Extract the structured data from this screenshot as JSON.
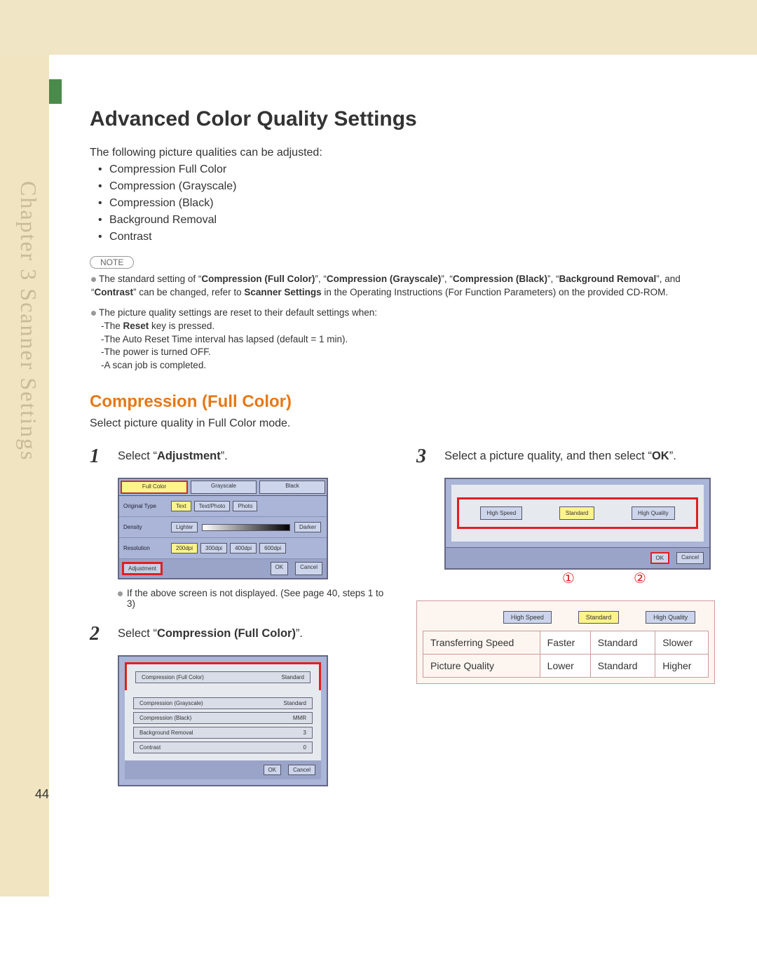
{
  "colors": {
    "beige": "#f0e5c5",
    "accent": "#4a8a4a",
    "orange": "#e67817",
    "red": "#e02020",
    "panel": "#aab5d8"
  },
  "sideTab": "Chapter 3   Scanner Settings",
  "h1": "Advanced Color Quality Settings",
  "intro": "The following picture qualities can be adjusted:",
  "bullets": [
    "Compression Full Color",
    "Compression (Grayscale)",
    "Compression (Black)",
    "Background Removal",
    "Contrast"
  ],
  "noteLabel": "NOTE",
  "note1_a": "The standard setting of “",
  "note1_b": "Compression (Full Color)",
  "note1_c": "”, “",
  "note1_d": "Compression (Grayscale)",
  "note1_e": "”, “",
  "note1_f": "Compression (Black)",
  "note1_g": "”, “",
  "note1_h": "Background Removal",
  "note1_i": "”, and “",
  "note1_j": "Contrast",
  "note1_k": "” can be changed, refer to ",
  "note1_l": "Scanner Settings",
  "note1_m": " in the Operating Instructions (For Function Parameters) on the provided CD-ROM.",
  "note2": "The picture quality settings are reset to their default settings when:",
  "note2subs": [
    "-The Reset key is pressed.",
    "-The Auto Reset Time interval has lapsed (default = 1 min).",
    "-The power is turned OFF.",
    "-A scan job is completed."
  ],
  "note2sub0_a": "-The ",
  "note2sub0_b": "Reset",
  "note2sub0_c": " key is pressed.",
  "h2": "Compression (Full Color)",
  "sel": "Select picture quality in Full Color mode.",
  "step1_a": "Select “",
  "step1_b": "Adjustment",
  "step1_c": "”.",
  "step1note": "If the above screen is not displayed. (See page 40, steps 1 to 3)",
  "step2_a": "Select “",
  "step2_b": "Compression (Full Color)",
  "step2_c": "”.",
  "step3_a": "Select a picture quality, and then select “",
  "step3_b": "OK",
  "step3_c": "”.",
  "num1": "1",
  "num2": "2",
  "num3": "3",
  "co1": "①",
  "co2": "②",
  "screen1": {
    "tabs": [
      "Full Color",
      "Grayscale",
      "Black"
    ],
    "rows": {
      "original": "Original Type",
      "origBtns": [
        "Text",
        "Text/Photo",
        "Photo"
      ],
      "density": "Density",
      "lighter": "Lighter",
      "darker": "Darker",
      "resolution": "Resolution",
      "resBtns": [
        "200dpi",
        "300dpi",
        "400dpi",
        "600dpi"
      ]
    },
    "adjustment": "Adjustment",
    "ok": "OK",
    "cancel": "Cancel"
  },
  "screen2": {
    "rows": [
      {
        "l": "Compression (Full Color)",
        "v": "Standard"
      },
      {
        "l": "Compression (Grayscale)",
        "v": "Standard"
      },
      {
        "l": "Compression (Black)",
        "v": "MMR"
      },
      {
        "l": "Background Removal",
        "v": "3"
      },
      {
        "l": "Contrast",
        "v": "0"
      }
    ],
    "ok": "OK",
    "cancel": "Cancel"
  },
  "screen3": {
    "btns": [
      "High Speed",
      "Standard",
      "High Quality"
    ],
    "ok": "OK",
    "cancel": "Cancel"
  },
  "table": {
    "chips": [
      "High Speed",
      "Standard",
      "High Quality"
    ],
    "rows": [
      {
        "h": "Transferring Speed",
        "c": [
          "Faster",
          "Standard",
          "Slower"
        ]
      },
      {
        "h": "Picture Quality",
        "c": [
          "Lower",
          "Standard",
          "Higher"
        ]
      }
    ]
  },
  "page": "44"
}
